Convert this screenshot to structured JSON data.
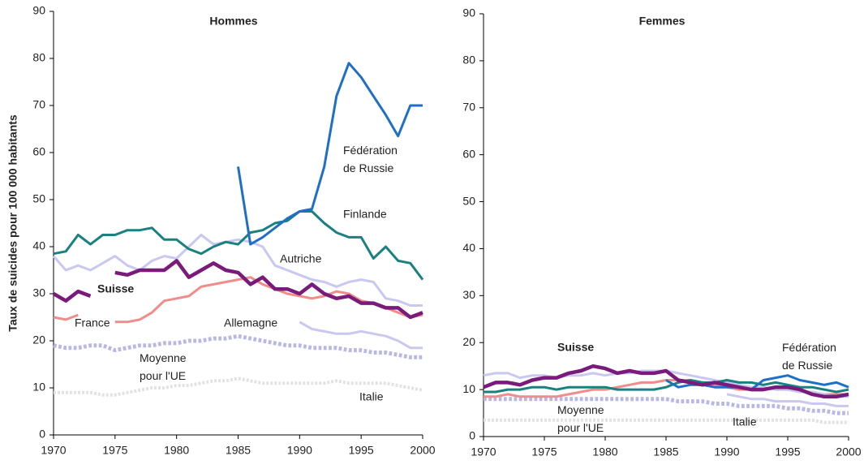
{
  "chart_data": [
    {
      "type": "line",
      "title": "Hommes",
      "ylabel": "Taux de suicides pour 100 000 habitants",
      "x": [
        1970,
        1971,
        1972,
        1973,
        1974,
        1975,
        1976,
        1977,
        1978,
        1979,
        1980,
        1981,
        1982,
        1983,
        1984,
        1985,
        1986,
        1987,
        1988,
        1989,
        1990,
        1991,
        1992,
        1993,
        1994,
        1995,
        1996,
        1997,
        1998,
        1999,
        2000
      ],
      "xlim": [
        1970,
        2000
      ],
      "xticks": [
        1970,
        1975,
        1980,
        1985,
        1990,
        1995,
        2000
      ],
      "ylim": [
        0,
        90
      ],
      "yticks": [
        0,
        10,
        20,
        30,
        40,
        50,
        60,
        70,
        80,
        90
      ],
      "series": [
        {
          "name": "Fédération de Russie",
          "color": "#1f6fc6",
          "values": [
            null,
            null,
            null,
            null,
            null,
            null,
            null,
            null,
            null,
            null,
            null,
            null,
            null,
            null,
            null,
            57,
            40.5,
            42,
            44,
            46,
            47.5,
            48,
            57,
            72,
            79,
            76,
            72,
            68,
            63.5,
            70,
            70
          ]
        },
        {
          "name": "Finlande",
          "color": "#1a8080",
          "values": [
            38.5,
            39,
            42.5,
            40.5,
            42.5,
            42.5,
            43.5,
            43.5,
            44,
            41.5,
            41.5,
            39.5,
            38.5,
            40,
            41,
            40.5,
            43,
            43.5,
            45,
            45.5,
            47.5,
            47.5,
            45,
            43,
            42,
            42,
            37.5,
            40,
            37,
            36.5,
            33
          ]
        },
        {
          "name": "Autriche",
          "color": "#c8c8f0",
          "values": [
            38,
            35,
            36,
            35,
            36.5,
            38,
            36,
            35,
            37,
            38,
            37.5,
            40,
            42.5,
            40.5,
            41,
            41.5,
            41,
            40,
            36,
            35,
            34,
            33,
            32.5,
            31.5,
            32.5,
            33,
            32.5,
            29,
            28.5,
            27.5,
            27.5
          ]
        },
        {
          "name": "Suisse",
          "color": "#7a1a7a",
          "values": [
            30,
            28.5,
            30.5,
            29.5,
            null,
            34.5,
            34,
            35,
            35,
            35,
            37,
            33.5,
            35,
            36.5,
            35,
            34.5,
            32,
            33.5,
            31,
            31,
            30,
            32,
            30,
            29,
            29.5,
            28,
            28,
            27,
            27,
            25,
            26
          ]
        },
        {
          "name": "France",
          "color": "#f08c8c",
          "values": [
            25,
            24.5,
            25.5,
            null,
            null,
            24,
            24,
            24.5,
            26,
            28.5,
            29,
            29.5,
            31.5,
            32,
            32.5,
            33,
            33.5,
            32,
            31,
            30,
            29.5,
            29,
            29.5,
            30.5,
            30,
            28.5,
            28,
            27,
            26,
            25,
            25.5
          ]
        },
        {
          "name": "Allemagne",
          "color": "#c8c8f0",
          "values": [
            null,
            null,
            null,
            null,
            null,
            null,
            null,
            null,
            null,
            null,
            null,
            null,
            null,
            null,
            null,
            null,
            null,
            null,
            null,
            null,
            24,
            22.5,
            22,
            21.5,
            21.5,
            22,
            21.5,
            21,
            20,
            18.5,
            18.5
          ]
        },
        {
          "name": "Moyenne pour l'UE",
          "color": "#b8b8e6",
          "values": [
            19,
            18.5,
            18.5,
            19,
            19,
            18,
            18.5,
            19,
            19,
            19.5,
            19.5,
            20,
            20,
            20.5,
            20.5,
            21,
            20.5,
            20,
            19.5,
            19,
            19,
            18.5,
            18.5,
            18.5,
            18,
            18,
            17.5,
            17.5,
            17,
            16.5,
            16.5
          ]
        },
        {
          "name": "Italie",
          "color": "#e2e2e2",
          "values": [
            9,
            9,
            9,
            9,
            8.5,
            8.5,
            9,
            9.5,
            10,
            10,
            10.5,
            10.5,
            11,
            11.5,
            11.5,
            12,
            11.5,
            11,
            11,
            11,
            11,
            11,
            11,
            11.5,
            11,
            11,
            11,
            11,
            10.5,
            10,
            9.5
          ]
        }
      ]
    },
    {
      "type": "line",
      "title": "Femmes",
      "x": [
        1970,
        1971,
        1972,
        1973,
        1974,
        1975,
        1976,
        1977,
        1978,
        1979,
        1980,
        1981,
        1982,
        1983,
        1984,
        1985,
        1986,
        1987,
        1988,
        1989,
        1990,
        1991,
        1992,
        1993,
        1994,
        1995,
        1996,
        1997,
        1998,
        1999,
        2000
      ],
      "xlim": [
        1970,
        2000
      ],
      "xticks": [
        1970,
        1975,
        1980,
        1985,
        1990,
        1995,
        2000
      ],
      "ylim": [
        0,
        90
      ],
      "yticks": [
        0,
        10,
        20,
        30,
        40,
        50,
        60,
        70,
        80,
        90
      ],
      "series": [
        {
          "name": "Fédération de Russie",
          "color": "#1f6fc6",
          "values": [
            null,
            null,
            null,
            null,
            null,
            null,
            null,
            null,
            null,
            null,
            null,
            null,
            null,
            null,
            null,
            12,
            10.5,
            11,
            11,
            10.5,
            10.5,
            10.5,
            10,
            12,
            12.5,
            13,
            12,
            11.5,
            11,
            11.5,
            10.5
          ]
        },
        {
          "color": "#1a8080",
          "values": [
            9.5,
            9.5,
            10,
            10,
            10.5,
            10.5,
            10,
            10.5,
            10.5,
            10.5,
            10.5,
            10,
            10,
            10,
            10,
            10.5,
            11.5,
            12,
            11.5,
            11.5,
            12,
            11.5,
            11.5,
            11,
            11.5,
            11,
            10.5,
            10.5,
            10,
            9.5,
            10
          ]
        },
        {
          "color": "#c8c8f0",
          "values": [
            13,
            13.5,
            13.5,
            12.5,
            13,
            13,
            12.5,
            13,
            13,
            13.5,
            13,
            13.5,
            13.5,
            14,
            14,
            14,
            13.5,
            13,
            12.5,
            12,
            11.5,
            11,
            10.5,
            10.5,
            10,
            10,
            9.5,
            9.5,
            9,
            8.5,
            8.5
          ]
        },
        {
          "name": "Suisse",
          "color": "#7a1a7a",
          "values": [
            10.5,
            11.5,
            11.5,
            11,
            12,
            12.5,
            12.5,
            13.5,
            14,
            15,
            14.5,
            13.5,
            14,
            13.5,
            13.5,
            14,
            12,
            11.5,
            11,
            11.5,
            11,
            10.5,
            10,
            10,
            10.5,
            10.5,
            10,
            9,
            8.5,
            8.5,
            9
          ]
        },
        {
          "color": "#f08c8c",
          "values": [
            8.5,
            8.5,
            9,
            8.5,
            8.5,
            8.5,
            8.5,
            9,
            9.5,
            10,
            10,
            10.5,
            11,
            11.5,
            11.5,
            12,
            12,
            12,
            11.5,
            11,
            10.5,
            10,
            10,
            10.5,
            10,
            10,
            9.5,
            9.5,
            9,
            9,
            9
          ]
        },
        {
          "color": "#c8c8f0",
          "values": [
            null,
            null,
            null,
            null,
            null,
            null,
            null,
            null,
            null,
            null,
            null,
            null,
            null,
            null,
            null,
            null,
            null,
            null,
            null,
            null,
            9,
            8.5,
            8,
            8,
            7.5,
            7.5,
            7.5,
            7,
            7,
            6.5,
            6.5
          ]
        },
        {
          "name": "Moyenne pour l'UE",
          "color": "#b8b8e6",
          "values": [
            8,
            8,
            8,
            8,
            8,
            8,
            8,
            8,
            8,
            8,
            8,
            8,
            8,
            8,
            8,
            8,
            7.5,
            7.5,
            7.5,
            7,
            7,
            6.5,
            6.5,
            6.5,
            6.5,
            6,
            6,
            5.5,
            5.5,
            5,
            5
          ]
        },
        {
          "name": "Italie",
          "color": "#e2e2e2",
          "values": [
            3.5,
            3.5,
            3.5,
            3.5,
            3.5,
            3.5,
            3.5,
            3.5,
            3.5,
            3.5,
            3.5,
            3.5,
            3.5,
            3.5,
            3.5,
            3.5,
            3.5,
            3.5,
            3.5,
            3.5,
            3.5,
            3.5,
            3.5,
            3.5,
            3.5,
            3.5,
            3.5,
            3.5,
            3,
            3,
            3
          ]
        }
      ]
    }
  ]
}
